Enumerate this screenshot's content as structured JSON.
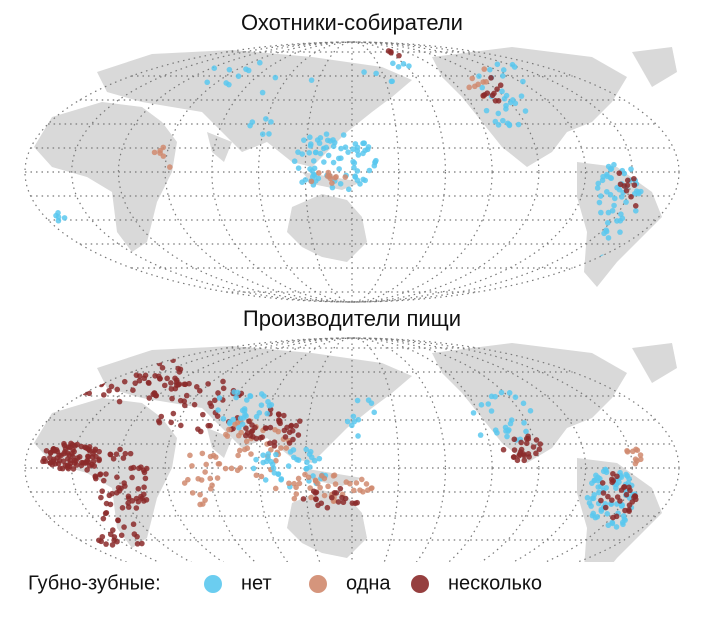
{
  "maps": [
    {
      "title": "Охотники-собиратели"
    },
    {
      "title": "Производители пищи"
    }
  ],
  "legend": {
    "label": "Губно-зубные:",
    "items": [
      {
        "label": "нет",
        "color": "#5bc8ee"
      },
      {
        "label": "одна",
        "color": "#d08a6e"
      },
      {
        "label": "несколько",
        "color": "#8b2a2a"
      }
    ]
  }
}
